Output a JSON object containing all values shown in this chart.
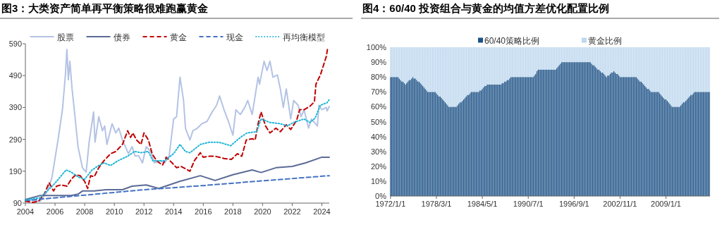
{
  "chart_data": [
    {
      "type": "line",
      "title": "图3：大类资产简单再平衡策略很难跑赢黄金",
      "legend": "top",
      "xlim": [
        2004,
        2024.5
      ],
      "xticks": [
        2004,
        2006,
        2008,
        2010,
        2012,
        2014,
        2016,
        2018,
        2020,
        2022,
        2024
      ],
      "ylim": [
        90,
        590
      ],
      "yticks": [
        90,
        190,
        290,
        390,
        490,
        590
      ],
      "series": [
        {
          "name": "股票",
          "color": "#b4c3e4",
          "line_style": "solid",
          "x": [
            2004,
            2005,
            2005.5,
            2005.8,
            2006.2,
            2006.5,
            2006.7,
            2006.8,
            2006.9,
            2007.0,
            2007.15,
            2007.3,
            2007.55,
            2007.85,
            2008.1,
            2008.3,
            2008.6,
            2008.7,
            2008.95,
            2009.2,
            2009.35,
            2009.5,
            2009.85,
            2010.1,
            2010.3,
            2010.55,
            2010.95,
            2011.2,
            2011.4,
            2011.65,
            2011.9,
            2012.15,
            2012.45,
            2012.7,
            2013.1,
            2013.4,
            2013.7,
            2014.0,
            2014.2,
            2014.43,
            2014.67,
            2014.8,
            2015.1,
            2015.3,
            2015.6,
            2015.9,
            2016.25,
            2016.6,
            2016.9,
            2017.1,
            2017.4,
            2017.7,
            2018.0,
            2018.2,
            2018.5,
            2018.8,
            2019.0,
            2019.3,
            2019.7,
            2019.8,
            2020.1,
            2020.3,
            2020.5,
            2020.7,
            2021.0,
            2021.2,
            2021.4,
            2021.6,
            2021.9,
            2022.1,
            2022.4,
            2022.6,
            2022.8,
            2023.1,
            2023.3,
            2023.7,
            2023.8,
            2024.0,
            2024.3,
            2024.35,
            2024.5
          ],
          "values": [
            99,
            96,
            128,
            172,
            288,
            383,
            492,
            572,
            477,
            535,
            448,
            383,
            267,
            201,
            187,
            281,
            376,
            281,
            361,
            317,
            332,
            274,
            339,
            310,
            325,
            288,
            245,
            267,
            238,
            238,
            216,
            267,
            252,
            216,
            223,
            216,
            238,
            354,
            361,
            485,
            412,
            325,
            288,
            317,
            325,
            339,
            346,
            376,
            397,
            426,
            383,
            346,
            303,
            383,
            368,
            390,
            412,
            368,
            485,
            463,
            535,
            506,
            535,
            485,
            492,
            448,
            390,
            448,
            354,
            412,
            397,
            361,
            383,
            325,
            354,
            332,
            397,
            383,
            390,
            379,
            393
          ]
        },
        {
          "name": "债券",
          "color": "#5b6b96",
          "line_style": "solid",
          "x": [
            2004,
            2005,
            2005.95,
            2007.1,
            2007.55,
            2007.85,
            2008.65,
            2009.45,
            2010.55,
            2011.2,
            2012.15,
            2013.0,
            2013.7,
            2014.4,
            2015.8,
            2016.8,
            2018.0,
            2019.3,
            2019.9,
            2020.9,
            2022.0,
            2022.9,
            2024.0,
            2024.5
          ],
          "values": [
            101,
            114,
            114,
            114,
            118,
            128,
            128,
            132,
            132,
            143,
            147,
            136,
            147,
            158,
            176,
            161,
            179,
            194,
            186,
            201,
            205,
            216,
            234,
            234
          ]
        },
        {
          "name": "黄金",
          "color": "#c00000",
          "line_style": "dashed",
          "x": [
            2004,
            2004.5,
            2004.9,
            2005.3,
            2005.6,
            2005.9,
            2006.1,
            2006.4,
            2006.8,
            2007.1,
            2007.4,
            2007.7,
            2008.0,
            2008.2,
            2008.4,
            2008.65,
            2008.95,
            2009.3,
            2009.75,
            2010.1,
            2010.55,
            2010.9,
            2011.1,
            2011.25,
            2011.5,
            2011.8,
            2012.0,
            2012.3,
            2012.55,
            2012.85,
            2013.25,
            2013.5,
            2013.9,
            2014.2,
            2014.5,
            2014.67,
            2015.1,
            2015.4,
            2015.8,
            2016.0,
            2016.4,
            2016.8,
            2017.4,
            2017.9,
            2018.3,
            2018.6,
            2018.9,
            2019.3,
            2019.5,
            2019.7,
            2019.9,
            2020.2,
            2020.5,
            2020.9,
            2021.2,
            2021.6,
            2021.9,
            2022.3,
            2022.5,
            2022.8,
            2023.2,
            2023.5,
            2023.6,
            2023.9,
            2024.1,
            2024.3,
            2024.4
          ],
          "values": [
            96,
            92,
            96,
            121,
            154,
            128,
            143,
            147,
            143,
            165,
            179,
            176,
            158,
            136,
            176,
            173,
            201,
            223,
            245,
            252,
            274,
            317,
            296,
            310,
            288,
            274,
            310,
            288,
            245,
            223,
            209,
            234,
            216,
            201,
            205,
            201,
            190,
            223,
            248,
            234,
            237,
            237,
            230,
            227,
            245,
            237,
            288,
            292,
            288,
            339,
            376,
            332,
            310,
            325,
            314,
            336,
            321,
            350,
            383,
            383,
            394,
            408,
            463,
            492,
            521,
            550,
            579
          ]
        },
        {
          "name": "现金",
          "color": "#4472c4",
          "line_style": "dashed",
          "x": [
            2004,
            2008,
            2012,
            2016,
            2020,
            2024.5
          ],
          "values": [
            98,
            115,
            132,
            145,
            160,
            176
          ]
        },
        {
          "name": "再均衡模型",
          "color": "#1fb5d6",
          "line_style": "dotted",
          "x": [
            2004,
            2005,
            2005.95,
            2006.75,
            2007.1,
            2007.55,
            2008,
            2008.5,
            2008.95,
            2009.3,
            2009.75,
            2010.25,
            2010.9,
            2011.35,
            2011.8,
            2012.3,
            2012.6,
            2013.4,
            2014.0,
            2014.43,
            2014.8,
            2015.1,
            2015.8,
            2016.4,
            2017.05,
            2017.85,
            2018.5,
            2018.95,
            2019.6,
            2019.9,
            2020.5,
            2021.2,
            2021.65,
            2022.1,
            2022.8,
            2023.2,
            2023.55,
            2023.9,
            2024.35,
            2024.5
          ],
          "values": [
            100,
            107,
            150,
            194,
            187,
            172,
            165,
            194,
            208,
            216,
            208,
            223,
            237,
            252,
            248,
            252,
            223,
            223,
            245,
            274,
            252,
            248,
            274,
            281,
            281,
            270,
            296,
            310,
            314,
            354,
            343,
            339,
            332,
            343,
            354,
            343,
            357,
            397,
            405,
            415
          ]
        }
      ]
    },
    {
      "type": "bar",
      "stacked": true,
      "title": "图4：60/40 投资组合与黄金的均值方差优化配置比例",
      "legend": "top",
      "ylim": [
        0,
        100
      ],
      "yticks": [
        {
          "value": 0,
          "label": "0%"
        },
        {
          "value": 10,
          "label": "10%"
        },
        {
          "value": 20,
          "label": "20%"
        },
        {
          "value": 30,
          "label": "30%"
        },
        {
          "value": 40,
          "label": "40%"
        },
        {
          "value": 50,
          "label": "50%"
        },
        {
          "value": 60,
          "label": "60%"
        },
        {
          "value": 70,
          "label": "70%"
        },
        {
          "value": 80,
          "label": "80%"
        },
        {
          "value": 90,
          "label": "90%"
        },
        {
          "value": 100,
          "label": "100%"
        }
      ],
      "categories": [
        "1972/1/1",
        null,
        null,
        null,
        null,
        null,
        null,
        null,
        null,
        null,
        null,
        null,
        null,
        null,
        null,
        null,
        null,
        null,
        null,
        null,
        null,
        null,
        null,
        null,
        null,
        null,
        null,
        null,
        null,
        null,
        null,
        null,
        null,
        null,
        null,
        null,
        null,
        "1978/3/1",
        null,
        null,
        null,
        null,
        null,
        null,
        null,
        null,
        null,
        null,
        null,
        null,
        null,
        null,
        null,
        null,
        null,
        null,
        null,
        null,
        null,
        null,
        null,
        null,
        null,
        null,
        null,
        null,
        null,
        null,
        null,
        null,
        null,
        null,
        null,
        null,
        "1984/5/1",
        null,
        null,
        null,
        null,
        null,
        null,
        null,
        null,
        null,
        null,
        null,
        null,
        null,
        null,
        null,
        null,
        null,
        null,
        null,
        null,
        null,
        null,
        null,
        null,
        null,
        null,
        null,
        null,
        null,
        null,
        null,
        null,
        null,
        null,
        null,
        null,
        "1990/7/1",
        null,
        null,
        null,
        null,
        null,
        null,
        null,
        null,
        null,
        null,
        null,
        null,
        null,
        null,
        null,
        null,
        null,
        null,
        null,
        null,
        null,
        null,
        null,
        null,
        null,
        null,
        null,
        null,
        null,
        null,
        null,
        null,
        null,
        null,
        null,
        null,
        "1996/9/1",
        null,
        null,
        null,
        null,
        null,
        null,
        null,
        null,
        null,
        null,
        null,
        null,
        null,
        null,
        null,
        null,
        null,
        null,
        null,
        null,
        null,
        null,
        null,
        null,
        null,
        null,
        null,
        null,
        null,
        null,
        null,
        null,
        null,
        null,
        null,
        null,
        "2002/11/1",
        null,
        null,
        null,
        null,
        null,
        null,
        null,
        null,
        null,
        null,
        null,
        null,
        null,
        null,
        null,
        null,
        null,
        null,
        null,
        null,
        null,
        null,
        null,
        null,
        null,
        null,
        null,
        null,
        null,
        null,
        null,
        null,
        null,
        null,
        null,
        null,
        "2009/1/1",
        null,
        null,
        null,
        null,
        null,
        null,
        null,
        null,
        null,
        null,
        null,
        null,
        null,
        null,
        null,
        null,
        null,
        null,
        null,
        null,
        null,
        null,
        null,
        null,
        null,
        null,
        null,
        null,
        null,
        null,
        null,
        null,
        null,
        null,
        null
      ],
      "series": [
        {
          "name": "60/40策略比例",
          "color": "#1c5186",
          "values": [
            80,
            80,
            80,
            80,
            80,
            80,
            80,
            79,
            78,
            77,
            77,
            76,
            75,
            76,
            77,
            78,
            78,
            79,
            80,
            79,
            79,
            78,
            77,
            77,
            76,
            75,
            74,
            73,
            72,
            71,
            70,
            70,
            70,
            70,
            70,
            70,
            70,
            69,
            68,
            67,
            67,
            66,
            65,
            64,
            63,
            62,
            61,
            60,
            60,
            60,
            60,
            60,
            60,
            60,
            61,
            62,
            63,
            63,
            64,
            65,
            66,
            67,
            68,
            68,
            69,
            70,
            70,
            70,
            70,
            70,
            70,
            70,
            71,
            71,
            72,
            73,
            74,
            74,
            75,
            75,
            75,
            75,
            75,
            75,
            75,
            75,
            75,
            75,
            75,
            75,
            76,
            76,
            77,
            77,
            78,
            78,
            79,
            80,
            80,
            80,
            80,
            80,
            80,
            80,
            80,
            80,
            80,
            80,
            80,
            80,
            80,
            80,
            80,
            80,
            80,
            80,
            81,
            82,
            84,
            85,
            85,
            85,
            85,
            85,
            85,
            85,
            85,
            85,
            85,
            85,
            85,
            85,
            85,
            85,
            86,
            87,
            88,
            89,
            90,
            90,
            90,
            90,
            90,
            90,
            90,
            90,
            90,
            90,
            90,
            90,
            90,
            90,
            90,
            90,
            90,
            90,
            90,
            90,
            90,
            90,
            90,
            90,
            89,
            88,
            88,
            87,
            86,
            85,
            85,
            84,
            83,
            83,
            82,
            81,
            80,
            81,
            81,
            82,
            83,
            83,
            84,
            83,
            82,
            82,
            81,
            80,
            80,
            80,
            80,
            80,
            80,
            80,
            80,
            80,
            80,
            80,
            80,
            80,
            80,
            79,
            78,
            77,
            77,
            76,
            75,
            74,
            73,
            72,
            72,
            71,
            70,
            70,
            70,
            70,
            70,
            70,
            70,
            69,
            68,
            67,
            66,
            65,
            65,
            64,
            63,
            62,
            61,
            60,
            60,
            60,
            60,
            60,
            60,
            60,
            61,
            62,
            63,
            63,
            64,
            65,
            66,
            67,
            68,
            68,
            69,
            70,
            70,
            70,
            70,
            70,
            70,
            70,
            70,
            70,
            70,
            70,
            70,
            70
          ]
        },
        {
          "name": "黄金比例",
          "color": "#bdd7ee",
          "values": [
            20,
            20,
            20,
            20,
            20,
            20,
            20,
            21,
            22,
            23,
            23,
            24,
            25,
            24,
            23,
            22,
            22,
            21,
            20,
            21,
            21,
            22,
            23,
            23,
            24,
            25,
            26,
            27,
            28,
            29,
            30,
            30,
            30,
            30,
            30,
            30,
            30,
            31,
            32,
            33,
            33,
            34,
            35,
            36,
            37,
            38,
            39,
            40,
            40,
            40,
            40,
            40,
            40,
            40,
            39,
            38,
            37,
            37,
            36,
            35,
            34,
            33,
            32,
            32,
            31,
            30,
            30,
            30,
            30,
            30,
            30,
            30,
            29,
            29,
            28,
            27,
            26,
            26,
            25,
            25,
            25,
            25,
            25,
            25,
            25,
            25,
            25,
            25,
            25,
            25,
            24,
            24,
            23,
            23,
            22,
            22,
            21,
            20,
            20,
            20,
            20,
            20,
            20,
            20,
            20,
            20,
            20,
            20,
            20,
            20,
            20,
            20,
            20,
            20,
            20,
            20,
            19,
            18,
            16,
            15,
            15,
            15,
            15,
            15,
            15,
            15,
            15,
            15,
            15,
            15,
            15,
            15,
            15,
            15,
            14,
            13,
            12,
            11,
            10,
            10,
            10,
            10,
            10,
            10,
            10,
            10,
            10,
            10,
            10,
            10,
            10,
            10,
            10,
            10,
            10,
            10,
            10,
            10,
            10,
            10,
            10,
            10,
            11,
            12,
            12,
            13,
            14,
            15,
            15,
            16,
            17,
            17,
            18,
            19,
            20,
            19,
            19,
            18,
            17,
            17,
            16,
            17,
            18,
            18,
            19,
            20,
            20,
            20,
            20,
            20,
            20,
            20,
            20,
            20,
            20,
            20,
            20,
            20,
            20,
            21,
            22,
            23,
            23,
            24,
            25,
            26,
            27,
            28,
            28,
            29,
            30,
            30,
            30,
            30,
            30,
            30,
            30,
            31,
            32,
            33,
            34,
            35,
            35,
            36,
            37,
            38,
            39,
            40,
            40,
            40,
            40,
            40,
            40,
            40,
            39,
            38,
            37,
            37,
            36,
            35,
            34,
            33,
            32,
            32,
            31,
            30,
            30,
            30,
            30,
            30,
            30,
            30,
            30,
            30,
            30,
            30,
            30,
            30
          ]
        }
      ]
    }
  ]
}
